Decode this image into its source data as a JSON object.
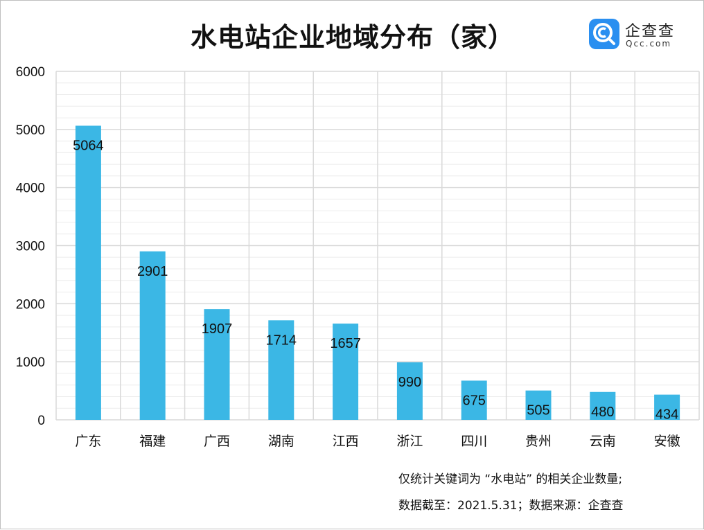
{
  "title": "水电站企业地域分布（家）",
  "logo": {
    "brand_cn": "企查查",
    "brand_en": "Qcc.com"
  },
  "notes": [
    "仅统计关键词为 “水电站” 的相关企业数量;",
    "数据截至：2021.5.31；数据来源：企查查"
  ],
  "colors": {
    "bar": "#3bb7e5",
    "grid": "#d9d9d9",
    "grid_minor": "#ececec",
    "logo": "#2a8ff0"
  },
  "chart_data": {
    "type": "bar",
    "title": "水电站企业地域分布（家）",
    "categories": [
      "广东",
      "福建",
      "广西",
      "湖南",
      "江西",
      "浙江",
      "四川",
      "贵州",
      "云南",
      "安徽"
    ],
    "values": [
      5064,
      2901,
      1907,
      1714,
      1657,
      990,
      675,
      505,
      480,
      434
    ],
    "ylim": [
      0,
      6000
    ],
    "yticks": [
      0,
      1000,
      2000,
      3000,
      4000,
      5000,
      6000
    ],
    "xlabel": "",
    "ylabel": "",
    "grid": true,
    "legend": "none",
    "data_labels": true
  }
}
